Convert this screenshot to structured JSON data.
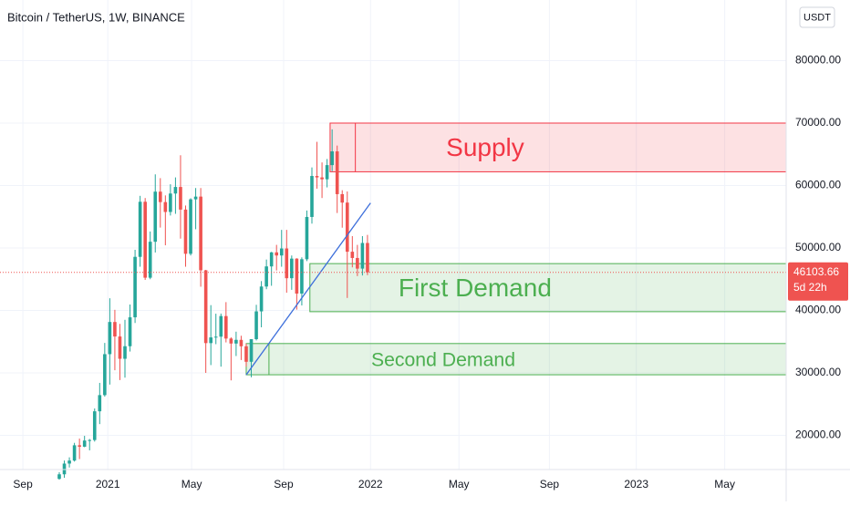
{
  "chart_data": {
    "type": "candlestick",
    "title": "Bitcoin / TetherUS, 1W, BINANCE",
    "currency": "USDT",
    "up_color": "#26a69a",
    "down_color": "#ef5350",
    "x": [
      0,
      1,
      2,
      3,
      4,
      5,
      6,
      7,
      8,
      9,
      10,
      11,
      12,
      13,
      14,
      15,
      16,
      17,
      18,
      19,
      20,
      21,
      22,
      23,
      24,
      25,
      26,
      27,
      28,
      29,
      30,
      31,
      32,
      33,
      34,
      35,
      36,
      37,
      38,
      39,
      40,
      41,
      42,
      43,
      44,
      45,
      46,
      47,
      48,
      49,
      50,
      51,
      52,
      53,
      54,
      55,
      56,
      57,
      58,
      59,
      60,
      61
    ],
    "open": [
      13030,
      13760,
      15480,
      15960,
      18410,
      18180,
      19170,
      19250,
      23850,
      26440,
      33000,
      38150,
      35830,
      32260,
      34270,
      38900,
      48580,
      57400,
      45240,
      51000,
      59020,
      57350,
      55770,
      58720,
      59770,
      56150,
      49070,
      57790,
      58230,
      46430,
      34770,
      35680,
      35800,
      39100,
      35500,
      34700,
      35290,
      34260,
      31780,
      35400,
      39850,
      43830,
      47050,
      49300,
      48800,
      49920,
      45160,
      48300,
      42700,
      48200,
      54970,
      61530,
      61300,
      61000,
      63270,
      65470,
      58620,
      57270,
      49400,
      48400,
      46700,
      50800
    ],
    "high": [
      14090,
      15970,
      16480,
      18800,
      19480,
      19920,
      19420,
      24300,
      28400,
      34800,
      41950,
      40100,
      37850,
      38500,
      40950,
      49710,
      58350,
      58000,
      52640,
      61790,
      61180,
      58420,
      60200,
      61300,
      64850,
      56800,
      57960,
      59600,
      59600,
      46500,
      40850,
      39480,
      39500,
      41330,
      35700,
      36600,
      35950,
      34700,
      35400,
      40900,
      44700,
      48150,
      49380,
      50500,
      52900,
      52900,
      48800,
      48360,
      48500,
      56000,
      62900,
      67000,
      63700,
      64250,
      69000,
      66400,
      59250,
      59050,
      51900,
      50500,
      51900,
      52100
    ],
    "low": [
      12900,
      13200,
      14850,
      15800,
      16200,
      18100,
      17600,
      19000,
      21800,
      26200,
      28130,
      30420,
      28850,
      29240,
      33420,
      37990,
      47000,
      44890,
      45000,
      49280,
      53270,
      50430,
      55200,
      55470,
      51500,
      47000,
      48800,
      53000,
      43800,
      30000,
      31250,
      34600,
      31000,
      34880,
      28800,
      32700,
      32060,
      31000,
      29300,
      35200,
      37300,
      43400,
      43950,
      46400,
      47000,
      42840,
      43300,
      40130,
      40800,
      47900,
      53900,
      59500,
      58000,
      59700,
      62300,
      55600,
      53250,
      42000,
      46900,
      45500,
      45600,
      45650
    ],
    "close": [
      13760,
      15480,
      15960,
      18410,
      18180,
      19170,
      19250,
      23850,
      26440,
      33000,
      38150,
      35830,
      32260,
      34270,
      38900,
      48580,
      57400,
      45240,
      51000,
      59020,
      57350,
      55770,
      58720,
      59770,
      56150,
      49070,
      57790,
      58230,
      46430,
      34770,
      35680,
      35800,
      39100,
      35500,
      34700,
      35290,
      34260,
      31780,
      35400,
      39850,
      43830,
      47050,
      49300,
      48800,
      49920,
      45160,
      48300,
      42700,
      48200,
      54970,
      61530,
      61300,
      61000,
      63270,
      65470,
      58620,
      57270,
      49400,
      48400,
      46700,
      50800,
      46103.66
    ],
    "xlim": [
      -11.73,
      143.86
    ],
    "xticks": [
      {
        "value": -7.2,
        "label": "Sep"
      },
      {
        "value": 9.6,
        "label": "2021"
      },
      {
        "value": 26.2,
        "label": "May"
      },
      {
        "value": 44.4,
        "label": "Sep"
      },
      {
        "value": 61.6,
        "label": "2022"
      },
      {
        "value": 79.1,
        "label": "May"
      },
      {
        "value": 97.0,
        "label": "Sep"
      },
      {
        "value": 114.2,
        "label": "2023"
      },
      {
        "value": 131.7,
        "label": "May"
      }
    ],
    "ylim": [
      14526,
      89708
    ],
    "yticks": [
      {
        "value": 20000,
        "label": "20000.00"
      },
      {
        "value": 30000,
        "label": "30000.00"
      },
      {
        "value": 40000,
        "label": "40000.00"
      },
      {
        "value": 50000,
        "label": "50000.00"
      },
      {
        "value": 60000,
        "label": "60000.00"
      },
      {
        "value": 70000,
        "label": "70000.00"
      },
      {
        "value": 80000,
        "label": "80000.00"
      }
    ],
    "grid": true,
    "current_price": 46103.66,
    "countdown": "5d 22h",
    "zones": [
      {
        "label": "Supply",
        "top": 70000,
        "bottom": 62200,
        "start": 53.6,
        "split": 58.6,
        "color": "#f23645"
      },
      {
        "label": "First Demand",
        "top": 47500,
        "bottom": 39800,
        "start": 49.6,
        "color": "#4caf50"
      },
      {
        "label": "Second Demand",
        "top": 34700,
        "bottom": 29700,
        "start": 37.0,
        "split": 41.5,
        "color": "#4caf50"
      }
    ],
    "trendline": {
      "x": [
        37.0,
        61.6
      ],
      "y": [
        29700,
        57200
      ],
      "color": "#3d6fdb"
    }
  }
}
